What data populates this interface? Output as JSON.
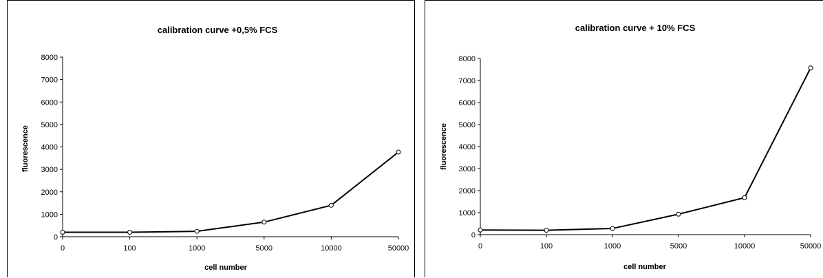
{
  "chart_data": [
    {
      "type": "line",
      "title": "calibration curve +0,5% FCS",
      "xlabel": "cell number",
      "ylabel": "fluorescence",
      "categories": [
        "0",
        "100",
        "1000",
        "5000",
        "10000",
        "50000"
      ],
      "series": [
        {
          "values": [
            200,
            200,
            240,
            650,
            1400,
            3770
          ]
        }
      ],
      "ylim": [
        0,
        8000
      ],
      "yticks": [
        "0",
        "1000",
        "2000",
        "3000",
        "4000",
        "5000",
        "6000",
        "7000",
        "8000"
      ],
      "grid": false,
      "legend": "none",
      "line_color": "#000000",
      "marker_fill": "#ffffff"
    },
    {
      "type": "line",
      "title": "calibration curve + 10% FCS",
      "xlabel": "cell number",
      "ylabel": "fluorescence",
      "categories": [
        "0",
        "100",
        "1000",
        "5000",
        "10000",
        "50000"
      ],
      "series": [
        {
          "values": [
            210,
            200,
            280,
            930,
            1680,
            7570
          ]
        }
      ],
      "ylim": [
        0,
        8000
      ],
      "yticks": [
        "0",
        "1000",
        "2000",
        "3000",
        "4000",
        "5000",
        "6000",
        "7000",
        "8000"
      ],
      "grid": false,
      "legend": "none",
      "line_color": "#000000",
      "marker_fill": "#ffffff"
    }
  ]
}
